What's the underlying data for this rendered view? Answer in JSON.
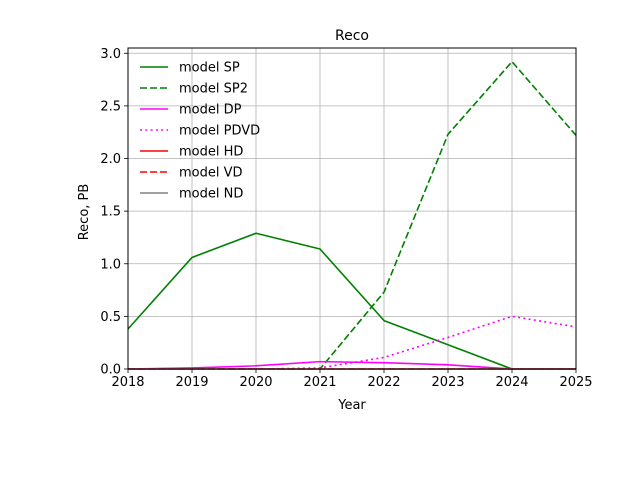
{
  "chart_data": {
    "type": "line",
    "title": "Reco",
    "xlabel": "Year",
    "ylabel": "Reco, PB",
    "xlim": [
      2018,
      2025
    ],
    "ylim": [
      0,
      3.05
    ],
    "xticks": [
      2018,
      2019,
      2020,
      2021,
      2022,
      2023,
      2024,
      2025
    ],
    "xtick_labels": [
      "2018",
      "2019",
      "2020",
      "2021",
      "2022",
      "2023",
      "2024",
      "2025"
    ],
    "yticks": [
      0.0,
      0.5,
      1.0,
      1.5,
      2.0,
      2.5,
      3.0
    ],
    "ytick_labels": [
      "0.0",
      "0.5",
      "1.0",
      "1.5",
      "2.0",
      "2.5",
      "3.0"
    ],
    "grid": true,
    "legend_position": "top-left",
    "x": [
      2018,
      2019,
      2020,
      2021,
      2022,
      2023,
      2024,
      2025
    ],
    "series": [
      {
        "name": "model SP",
        "color": "#008000",
        "style": "solid",
        "values": [
          0.38,
          1.06,
          1.29,
          1.14,
          0.46,
          0.23,
          0.0,
          0.0
        ]
      },
      {
        "name": "model SP2",
        "color": "#008000",
        "style": "dashed",
        "values": [
          0.0,
          0.0,
          0.0,
          0.0,
          0.73,
          2.23,
          2.92,
          2.22
        ]
      },
      {
        "name": "model DP",
        "color": "#ff00ff",
        "style": "solid",
        "values": [
          0.0,
          0.01,
          0.03,
          0.07,
          0.06,
          0.04,
          0.0,
          0.0
        ]
      },
      {
        "name": "model PDVD",
        "color": "#ff00ff",
        "style": "dotted",
        "values": [
          0.0,
          0.0,
          0.0,
          0.01,
          0.11,
          0.3,
          0.5,
          0.4
        ]
      },
      {
        "name": "model HD",
        "color": "#ff0000",
        "style": "solid",
        "values": [
          0.0,
          0.0,
          0.0,
          0.0,
          0.0,
          0.0,
          0.0,
          0.0
        ]
      },
      {
        "name": "model VD",
        "color": "#ff0000",
        "style": "dashed",
        "values": [
          0.0,
          0.0,
          0.0,
          0.0,
          0.0,
          0.0,
          0.0,
          0.0
        ]
      },
      {
        "name": "model ND",
        "color": "#808080",
        "style": "solid",
        "values": [
          0.0,
          0.0,
          0.0,
          0.0,
          0.0,
          0.0,
          0.0,
          0.0
        ]
      }
    ]
  }
}
